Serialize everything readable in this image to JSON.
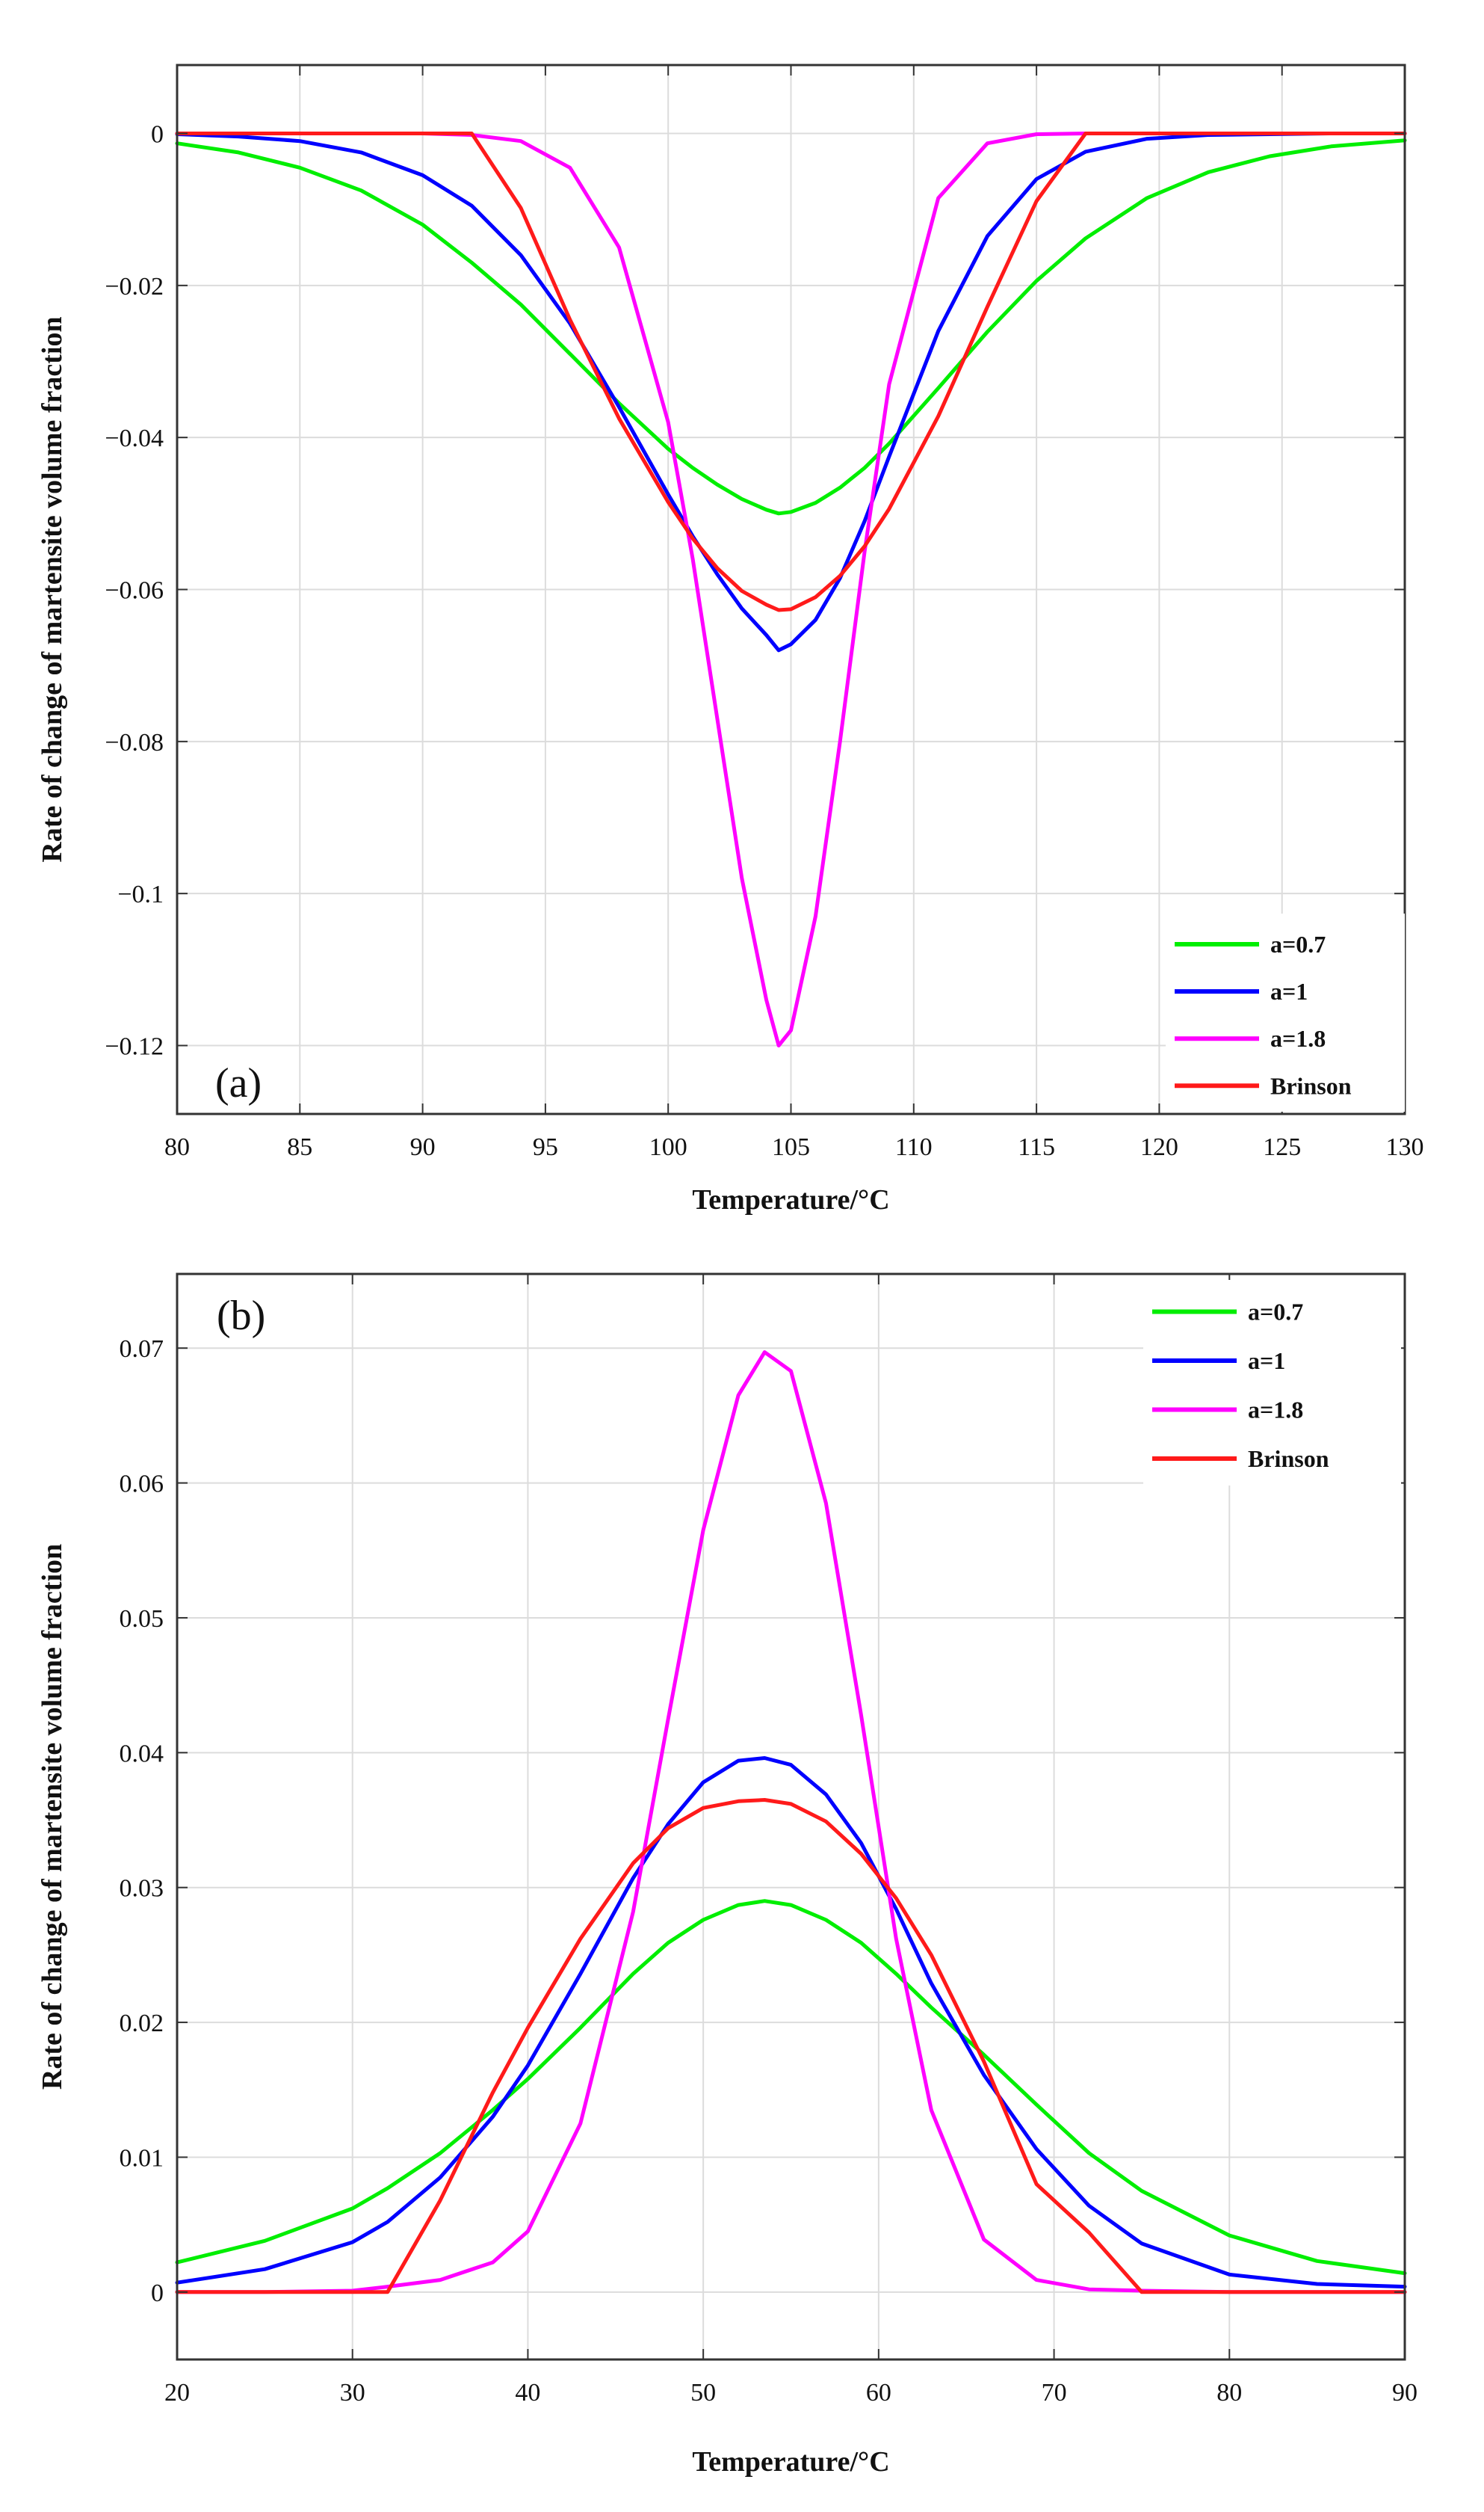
{
  "chart_data": [
    {
      "type": "line",
      "panel_label": "(a)",
      "xlabel": "Temperature/°C",
      "ylabel": "Rate of change of martensite volume fraction",
      "xlim": [
        80,
        130
      ],
      "ylim": [
        -0.129,
        0.009
      ],
      "xticks": [
        80,
        85,
        90,
        95,
        100,
        105,
        110,
        115,
        120,
        125,
        130
      ],
      "yticks": [
        0,
        -0.02,
        -0.04,
        -0.06,
        -0.08,
        -0.1,
        -0.12
      ],
      "ytick_labels": [
        "0",
        "−0.02",
        "−0.04",
        "−0.06",
        "−0.08",
        "−0.1",
        "−0.12"
      ],
      "grid": true,
      "legend_position": "bottom-right",
      "x": [
        80,
        82.5,
        85,
        87.5,
        90,
        92,
        94,
        96,
        98,
        100,
        101,
        102,
        103,
        104,
        104.5,
        105,
        106,
        107,
        108,
        109,
        111,
        113,
        115,
        117,
        119.5,
        122,
        124.5,
        127,
        130
      ],
      "series": [
        {
          "name": "a=0.7",
          "color": "#00ee00",
          "values": [
            -0.0013,
            -0.0025,
            -0.0045,
            -0.0075,
            -0.012,
            -0.017,
            -0.0225,
            -0.029,
            -0.0355,
            -0.0415,
            -0.044,
            -0.0462,
            -0.0481,
            -0.0495,
            -0.05,
            -0.0498,
            -0.0486,
            -0.0466,
            -0.044,
            -0.0408,
            -0.0335,
            -0.0261,
            -0.0194,
            -0.0138,
            -0.0085,
            -0.0051,
            -0.003,
            -0.0017,
            -0.0009
          ]
        },
        {
          "name": "a=1",
          "color": "#0000ff",
          "values": [
            -0.0001,
            -0.0004,
            -0.001,
            -0.0025,
            -0.0055,
            -0.0095,
            -0.016,
            -0.025,
            -0.036,
            -0.0475,
            -0.053,
            -0.058,
            -0.0625,
            -0.066,
            -0.068,
            -0.0672,
            -0.064,
            -0.0585,
            -0.051,
            -0.0425,
            -0.026,
            -0.0135,
            -0.006,
            -0.0024,
            -0.0007,
            -0.0002,
            -0.0001,
            0,
            0
          ]
        },
        {
          "name": "a=1.8",
          "color": "#ff00ff",
          "values": [
            0,
            0,
            0,
            0,
            0,
            -0.0002,
            -0.001,
            -0.0045,
            -0.015,
            -0.038,
            -0.056,
            -0.077,
            -0.098,
            -0.114,
            -0.12,
            -0.118,
            -0.103,
            -0.08,
            -0.055,
            -0.033,
            -0.0085,
            -0.0013,
            -0.0001,
            0,
            0,
            0,
            0,
            0,
            0
          ]
        },
        {
          "name": "Brinson",
          "color": "#ff1a1a",
          "values": [
            0,
            0,
            0,
            0,
            0,
            0,
            -0.0098,
            -0.0245,
            -0.0375,
            -0.0485,
            -0.0533,
            -0.0572,
            -0.0602,
            -0.062,
            -0.0627,
            -0.0626,
            -0.061,
            -0.0582,
            -0.0543,
            -0.0494,
            -0.0372,
            -0.0228,
            -0.0089,
            0,
            0,
            0,
            0,
            0,
            0
          ]
        }
      ]
    },
    {
      "type": "line",
      "panel_label": "(b)",
      "xlabel": "Temperature/°C",
      "ylabel": "Rate of change of martensite volume fraction",
      "xlim": [
        20,
        90
      ],
      "ylim": [
        -0.005,
        0.0755
      ],
      "xticks": [
        20,
        30,
        40,
        50,
        60,
        70,
        80,
        90
      ],
      "yticks": [
        0,
        0.01,
        0.02,
        0.03,
        0.04,
        0.05,
        0.06,
        0.07
      ],
      "ytick_labels": [
        "0",
        "0.01",
        "0.02",
        "0.03",
        "0.04",
        "0.05",
        "0.06",
        "0.07"
      ],
      "grid": true,
      "legend_position": "top-right",
      "x": [
        20,
        25,
        30,
        32,
        35,
        38,
        40,
        43,
        46,
        48,
        50,
        52,
        53.5,
        55,
        57,
        59,
        61,
        63,
        66,
        69,
        72,
        75,
        80,
        85,
        90
      ],
      "series": [
        {
          "name": "a=0.7",
          "color": "#00ee00",
          "values": [
            0.0022,
            0.0038,
            0.0062,
            0.0077,
            0.0103,
            0.0135,
            0.0158,
            0.0196,
            0.0236,
            0.0259,
            0.0276,
            0.0287,
            0.029,
            0.0287,
            0.0276,
            0.0259,
            0.0236,
            0.0211,
            0.0176,
            0.0139,
            0.0103,
            0.0075,
            0.0042,
            0.0023,
            0.0014
          ]
        },
        {
          "name": "a=1",
          "color": "#0000ff",
          "values": [
            0.0007,
            0.0017,
            0.0037,
            0.0052,
            0.0085,
            0.013,
            0.0168,
            0.0236,
            0.0307,
            0.0347,
            0.0378,
            0.0394,
            0.0396,
            0.0391,
            0.0369,
            0.0333,
            0.0284,
            0.0229,
            0.0161,
            0.0106,
            0.0064,
            0.0036,
            0.0013,
            0.0006,
            0.0004
          ]
        },
        {
          "name": "a=1.8",
          "color": "#ff00ff",
          "values": [
            0,
            0,
            0.0001,
            0.0004,
            0.0009,
            0.0022,
            0.0045,
            0.0125,
            0.0282,
            0.0425,
            0.0565,
            0.0665,
            0.0697,
            0.0683,
            0.0585,
            0.0428,
            0.0262,
            0.0135,
            0.0039,
            0.0009,
            0.0002,
            0.0001,
            0,
            0,
            0
          ]
        },
        {
          "name": "Brinson",
          "color": "#ff1a1a",
          "values": [
            0,
            0,
            0,
            0,
            0.0068,
            0.0148,
            0.0196,
            0.0262,
            0.0318,
            0.0344,
            0.0359,
            0.0364,
            0.0365,
            0.0362,
            0.0349,
            0.0325,
            0.0292,
            0.025,
            0.0171,
            0.008,
            0.0044,
            0,
            0,
            0,
            0
          ]
        }
      ]
    }
  ]
}
